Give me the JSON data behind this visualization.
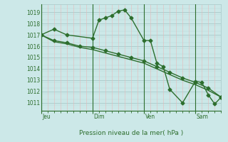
{
  "background_color": "#cce8e8",
  "line_color": "#2d6e2d",
  "xlabel": "Pression niveau de la mer( hPa )",
  "ylim": [
    1010.3,
    1019.7
  ],
  "yticks": [
    1011,
    1012,
    1013,
    1014,
    1015,
    1016,
    1017,
    1018,
    1019
  ],
  "day_labels": [
    "Jeu",
    "Dim",
    "Ven",
    "Sam"
  ],
  "day_positions": [
    0,
    48,
    96,
    144
  ],
  "total_hours": 168,
  "minor_v_color": "#e8b8b8",
  "minor_h_color": "#b8d8d8",
  "major_grid_color": "#a8c8c8",
  "series1_x": [
    0,
    12,
    24,
    48,
    54,
    60,
    66,
    72,
    78,
    84,
    96,
    102,
    108,
    114,
    120,
    132,
    144,
    150,
    156,
    162,
    168
  ],
  "series1_y": [
    1017.0,
    1017.5,
    1017.0,
    1016.7,
    1018.3,
    1018.5,
    1018.7,
    1019.1,
    1019.2,
    1018.5,
    1016.5,
    1016.5,
    1014.5,
    1014.2,
    1012.2,
    1011.0,
    1012.9,
    1012.8,
    1011.7,
    1010.9,
    1011.5
  ],
  "series2_x": [
    0,
    12,
    24,
    36,
    48,
    60,
    72,
    84,
    96,
    108,
    120,
    132,
    144,
    156,
    168
  ],
  "series2_y": [
    1017.0,
    1016.5,
    1016.3,
    1016.0,
    1015.9,
    1015.6,
    1015.3,
    1015.0,
    1014.7,
    1014.2,
    1013.7,
    1013.2,
    1012.8,
    1012.3,
    1011.5
  ],
  "series3_x": [
    0,
    12,
    24,
    36,
    48,
    60,
    72,
    84,
    96,
    108,
    120,
    132,
    144,
    156,
    168
  ],
  "series3_y": [
    1017.0,
    1016.4,
    1016.2,
    1015.9,
    1015.7,
    1015.4,
    1015.1,
    1014.8,
    1014.5,
    1014.0,
    1013.5,
    1013.0,
    1012.6,
    1012.1,
    1011.5
  ]
}
